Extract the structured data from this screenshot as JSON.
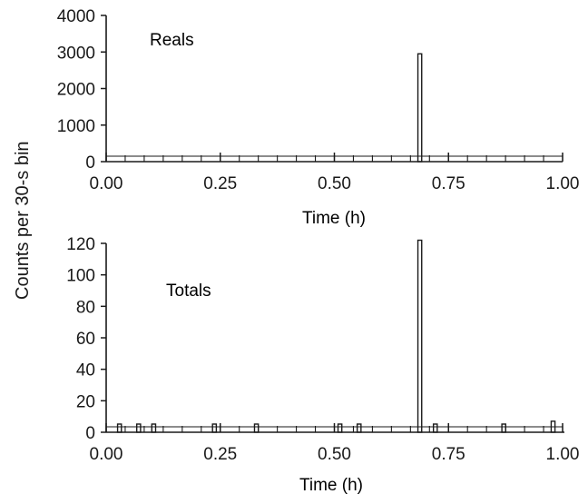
{
  "ylabel": "Counts per 30-s bin",
  "chart_data": [
    {
      "type": "bar",
      "annotation": "Reals",
      "xlabel": "Time (h)",
      "xlim": [
        0.0,
        1.0
      ],
      "ylim": [
        0,
        4000
      ],
      "xticks": [
        "0.00",
        "0.25",
        "0.50",
        "0.75",
        "1.00"
      ],
      "yticks": [
        "0",
        "1000",
        "2000",
        "3000",
        "4000"
      ],
      "bin_width_h": 0.00833,
      "bars": [
        {
          "x": 0.683,
          "value": 2950
        }
      ],
      "baseline_value": 0,
      "grid": false
    },
    {
      "type": "bar",
      "annotation": "Totals",
      "xlabel": "Time (h)",
      "xlim": [
        0.0,
        1.0
      ],
      "ylim": [
        0,
        120
      ],
      "xticks": [
        "0.00",
        "0.25",
        "0.50",
        "0.75",
        "1.00"
      ],
      "yticks": [
        "0",
        "20",
        "40",
        "60",
        "80",
        "100",
        "120"
      ],
      "bin_width_h": 0.00833,
      "bars": [
        {
          "x": 0.683,
          "value": 122
        },
        {
          "x": 0.975,
          "value": 7
        },
        {
          "x": 0.233,
          "value": 4
        },
        {
          "x": 0.508,
          "value": 4
        },
        {
          "x": 0.025,
          "value": 3
        },
        {
          "x": 0.067,
          "value": 3
        },
        {
          "x": 0.1,
          "value": 3
        },
        {
          "x": 0.325,
          "value": 3
        },
        {
          "x": 0.55,
          "value": 3
        },
        {
          "x": 0.717,
          "value": 3
        },
        {
          "x": 0.867,
          "value": 3
        }
      ],
      "baseline_value": 2,
      "grid": false
    }
  ]
}
